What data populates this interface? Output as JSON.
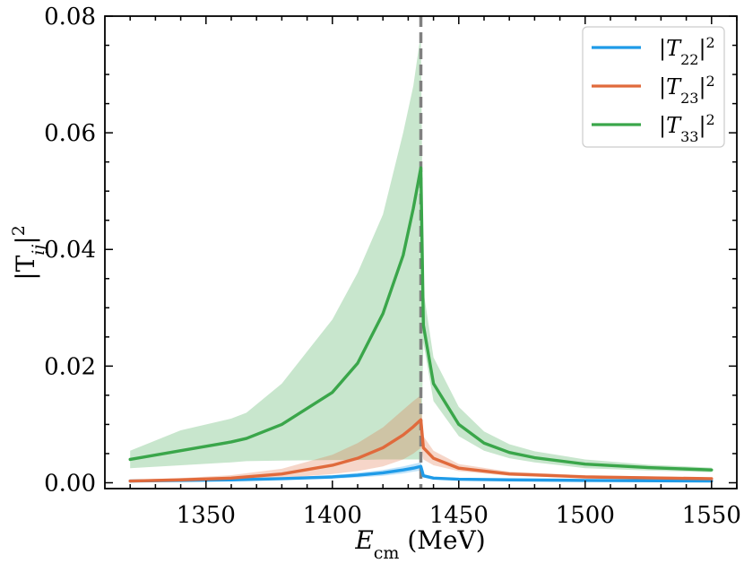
{
  "chart_data": {
    "type": "line",
    "xlabel_main": "E",
    "xlabel_sub": "cm",
    "xlabel_unit": " (MeV)",
    "ylabel_left": "|T",
    "ylabel_sub": "ij",
    "ylabel_right": "|",
    "ylabel_sup": "2",
    "xlim": [
      1310,
      1560
    ],
    "ylim": [
      -0.001,
      0.08
    ],
    "xticks": [
      1350,
      1400,
      1450,
      1500,
      1550
    ],
    "xtick_labels": [
      "1350",
      "1400",
      "1450",
      "1500",
      "1550"
    ],
    "yticks": [
      0.0,
      0.02,
      0.04,
      0.06,
      0.08
    ],
    "ytick_labels": [
      "0.00",
      "0.02",
      "0.04",
      "0.06",
      "0.08"
    ],
    "threshold_x": 1435,
    "threshold_color": "#808080",
    "grid": false,
    "legend_position": "top-right",
    "series": [
      {
        "id": "t22",
        "legend_left": "|T",
        "legend_sub": "22",
        "legend_right": "|",
        "legend_sup": "2",
        "color": "#1f9be8",
        "x": [
          1320,
          1340,
          1360,
          1380,
          1400,
          1410,
          1420,
          1428,
          1432,
          1435,
          1436,
          1440,
          1450,
          1470,
          1500,
          1550
        ],
        "values": [
          0.0003,
          0.0004,
          0.0005,
          0.0007,
          0.001,
          0.0013,
          0.0017,
          0.0022,
          0.0025,
          0.0028,
          0.0012,
          0.0008,
          0.0006,
          0.0005,
          0.0004,
          0.0003
        ],
        "band_lower": [
          0.0002,
          0.0003,
          0.0004,
          0.0005,
          0.0007,
          0.0009,
          0.0012,
          0.0016,
          0.0019,
          0.0021,
          0.0009,
          0.0006,
          0.0005,
          0.0004,
          0.0003,
          0.0002
        ],
        "band_upper": [
          0.0004,
          0.0005,
          0.0007,
          0.0009,
          0.0013,
          0.0017,
          0.0022,
          0.0028,
          0.0032,
          0.0035,
          0.0015,
          0.001,
          0.0008,
          0.0006,
          0.0005,
          0.0004
        ]
      },
      {
        "id": "t23",
        "legend_left": "|T",
        "legend_sub": "23",
        "legend_right": "|",
        "legend_sup": "2",
        "color": "#e06a3c",
        "x": [
          1320,
          1340,
          1360,
          1380,
          1400,
          1410,
          1420,
          1428,
          1432,
          1435,
          1436,
          1440,
          1450,
          1470,
          1500,
          1550
        ],
        "values": [
          0.0003,
          0.0005,
          0.0008,
          0.0015,
          0.003,
          0.0042,
          0.006,
          0.0082,
          0.0096,
          0.0108,
          0.006,
          0.0042,
          0.0025,
          0.0015,
          0.001,
          0.0007
        ],
        "band_lower": [
          0.0001,
          0.0002,
          0.0004,
          0.0008,
          0.0015,
          0.002,
          0.0028,
          0.004,
          0.005,
          0.006,
          0.004,
          0.003,
          0.002,
          0.0012,
          0.0008,
          0.0005
        ],
        "band_upper": [
          0.0005,
          0.0008,
          0.0013,
          0.0024,
          0.0048,
          0.0068,
          0.0095,
          0.0125,
          0.014,
          0.015,
          0.008,
          0.0055,
          0.0032,
          0.0019,
          0.0013,
          0.0009
        ]
      },
      {
        "id": "t33",
        "legend_left": "|T",
        "legend_sub": "33",
        "legend_right": "|",
        "legend_sup": "2",
        "color": "#3aa64a",
        "x": [
          1320,
          1340,
          1360,
          1366,
          1380,
          1400,
          1410,
          1420,
          1428,
          1432,
          1435,
          1436,
          1440,
          1450,
          1460,
          1470,
          1480,
          1500,
          1525,
          1550
        ],
        "values": [
          0.004,
          0.0055,
          0.007,
          0.0076,
          0.01,
          0.0155,
          0.0205,
          0.029,
          0.039,
          0.047,
          0.054,
          0.027,
          0.017,
          0.01,
          0.0068,
          0.0052,
          0.0043,
          0.0032,
          0.0026,
          0.0022
        ],
        "band_lower": [
          0.0025,
          0.003,
          0.0035,
          0.0037,
          0.0038,
          0.0039,
          0.0039,
          0.004,
          0.004,
          0.004,
          0.004,
          0.024,
          0.014,
          0.008,
          0.0055,
          0.0042,
          0.0035,
          0.0025,
          0.0021,
          0.0018
        ],
        "band_upper": [
          0.0055,
          0.009,
          0.011,
          0.012,
          0.017,
          0.028,
          0.036,
          0.046,
          0.06,
          0.068,
          0.077,
          0.033,
          0.0215,
          0.013,
          0.0088,
          0.0066,
          0.0054,
          0.004,
          0.0031,
          0.0026
        ]
      }
    ]
  }
}
